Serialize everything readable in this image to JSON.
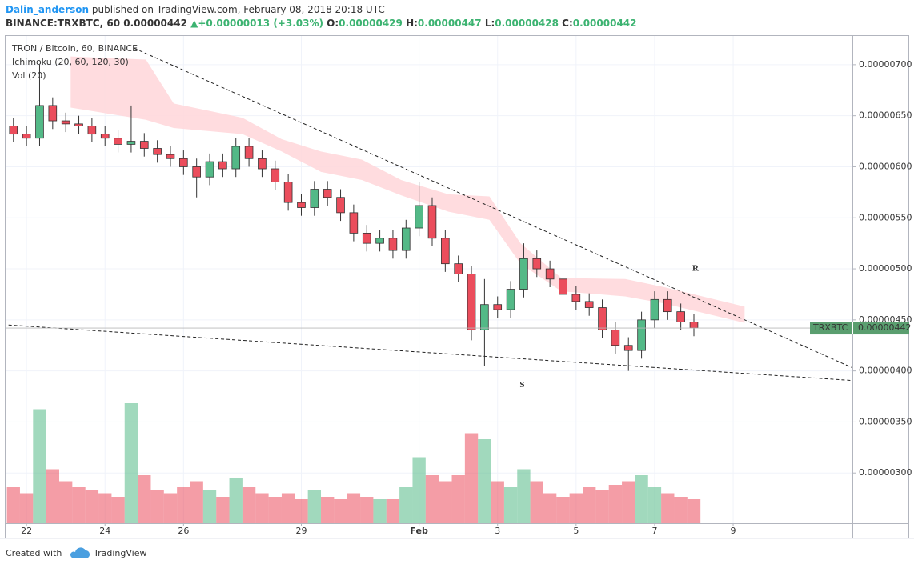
{
  "header": {
    "author": "Dalin_anderson",
    "published": "published on TradingView.com, February 08, 2018 20:18 UTC",
    "symbol": "BINANCE:TRXBTC, 60",
    "last": "0.00000442",
    "arrow": "▲",
    "change": "+0.00000013 (+3.03%)",
    "o_label": "O:",
    "o": "0.00000429",
    "h_label": "H:",
    "h": "0.00000447",
    "l_label": "L:",
    "l": "0.00000428",
    "c_label": "C:",
    "c": "0.00000442"
  },
  "legend": [
    "TRON / Bitcoin, 60, BINANCE",
    "Ichimoku (20, 60, 120, 30)",
    "Vol (20)"
  ],
  "price_label": {
    "symbol": "TRXBTC",
    "value": "0.00000442"
  },
  "footer": {
    "text": "Created with",
    "brand": "TradingView"
  },
  "chart_data": {
    "type": "candlestick",
    "x": [
      "2018-01-21 16:00",
      "2018-01-22 00:00",
      "2018-01-22 08:00",
      "2018-01-22 16:00",
      "2018-01-23 00:00",
      "2018-01-23 08:00",
      "2018-01-23 16:00",
      "2018-01-24 00:00",
      "2018-01-24 08:00",
      "2018-01-24 16:00",
      "2018-01-25 00:00",
      "2018-01-25 08:00",
      "2018-01-25 16:00",
      "2018-01-26 00:00",
      "2018-01-26 08:00",
      "2018-01-26 16:00",
      "2018-01-27 00:00",
      "2018-01-27 08:00",
      "2018-01-27 16:00",
      "2018-01-28 00:00",
      "2018-01-28 08:00",
      "2018-01-28 16:00",
      "2018-01-29 00:00",
      "2018-01-29 08:00",
      "2018-01-29 16:00",
      "2018-01-30 00:00",
      "2018-01-30 08:00",
      "2018-01-30 16:00",
      "2018-01-31 00:00",
      "2018-01-31 08:00",
      "2018-01-31 16:00",
      "2018-02-01 00:00",
      "2018-02-01 08:00",
      "2018-02-01 16:00",
      "2018-02-02 00:00",
      "2018-02-02 08:00",
      "2018-02-02 16:00",
      "2018-02-03 00:00",
      "2018-02-03 08:00",
      "2018-02-03 16:00",
      "2018-02-04 00:00",
      "2018-02-04 08:00",
      "2018-02-04 16:00",
      "2018-02-05 00:00",
      "2018-02-05 08:00",
      "2018-02-05 16:00",
      "2018-02-06 00:00",
      "2018-02-06 08:00",
      "2018-02-06 16:00",
      "2018-02-07 00:00",
      "2018-02-07 08:00",
      "2018-02-07 16:00",
      "2018-02-08 00:00"
    ],
    "open": [
      6.4e-06,
      6.32e-06,
      6.28e-06,
      6.6e-06,
      6.45e-06,
      6.42e-06,
      6.4e-06,
      6.32e-06,
      6.28e-06,
      6.22e-06,
      6.25e-06,
      6.18e-06,
      6.12e-06,
      6.08e-06,
      6e-06,
      5.9e-06,
      6.05e-06,
      5.98e-06,
      6.2e-06,
      6.08e-06,
      5.98e-06,
      5.85e-06,
      5.65e-06,
      5.6e-06,
      5.78e-06,
      5.7e-06,
      5.55e-06,
      5.35e-06,
      5.25e-06,
      5.3e-06,
      5.18e-06,
      5.4e-06,
      5.62e-06,
      5.3e-06,
      5.05e-06,
      4.95e-06,
      4.4e-06,
      4.65e-06,
      4.6e-06,
      4.8e-06,
      5.1e-06,
      5e-06,
      4.9e-06,
      4.75e-06,
      4.68e-06,
      4.62e-06,
      4.4e-06,
      4.25e-06,
      4.2e-06,
      4.5e-06,
      4.7e-06,
      4.58e-06,
      4.48e-06
    ],
    "high": [
      6.48e-06,
      6.4e-06,
      7e-06,
      6.68e-06,
      6.53e-06,
      6.5e-06,
      6.48e-06,
      6.4e-06,
      6.36e-06,
      6.6e-06,
      6.33e-06,
      6.26e-06,
      6.2e-06,
      6.16e-06,
      6.08e-06,
      6.13e-06,
      6.13e-06,
      6.28e-06,
      6.28e-06,
      6.16e-06,
      6.06e-06,
      5.93e-06,
      5.73e-06,
      5.86e-06,
      5.86e-06,
      5.78e-06,
      5.63e-06,
      5.43e-06,
      5.38e-06,
      5.38e-06,
      5.48e-06,
      5.85e-06,
      5.7e-06,
      5.38e-06,
      5.13e-06,
      5.03e-06,
      4.9e-06,
      4.73e-06,
      4.88e-06,
      5.25e-06,
      5.18e-06,
      5.08e-06,
      4.98e-06,
      4.83e-06,
      4.76e-06,
      4.7e-06,
      4.48e-06,
      4.33e-06,
      4.58e-06,
      4.78e-06,
      4.78e-06,
      4.66e-06,
      4.56e-06
    ],
    "low": [
      6.24e-06,
      6.2e-06,
      6.2e-06,
      6.37e-06,
      6.34e-06,
      6.32e-06,
      6.24e-06,
      6.2e-06,
      6.14e-06,
      6.14e-06,
      6.1e-06,
      6.04e-06,
      6e-06,
      5.92e-06,
      5.7e-06,
      5.82e-06,
      5.9e-06,
      5.9e-06,
      6e-06,
      5.9e-06,
      5.77e-06,
      5.57e-06,
      5.52e-06,
      5.52e-06,
      5.62e-06,
      5.47e-06,
      5.27e-06,
      5.17e-06,
      5.17e-06,
      5.1e-06,
      5.1e-06,
      5.32e-06,
      5.22e-06,
      4.97e-06,
      4.87e-06,
      4.3e-06,
      4.05e-06,
      4.52e-06,
      4.52e-06,
      4.72e-06,
      4.92e-06,
      4.82e-06,
      4.67e-06,
      4.6e-06,
      4.54e-06,
      4.32e-06,
      4.17e-06,
      4e-06,
      4.12e-06,
      4.42e-06,
      4.5e-06,
      4.4e-06,
      4.34e-06
    ],
    "close": [
      6.32e-06,
      6.28e-06,
      6.6e-06,
      6.45e-06,
      6.42e-06,
      6.4e-06,
      6.32e-06,
      6.28e-06,
      6.22e-06,
      6.25e-06,
      6.18e-06,
      6.12e-06,
      6.08e-06,
      6e-06,
      5.9e-06,
      6.05e-06,
      5.98e-06,
      6.2e-06,
      6.08e-06,
      5.98e-06,
      5.85e-06,
      5.65e-06,
      5.6e-06,
      5.78e-06,
      5.7e-06,
      5.55e-06,
      5.35e-06,
      5.25e-06,
      5.3e-06,
      5.18e-06,
      5.4e-06,
      5.62e-06,
      5.3e-06,
      5.05e-06,
      4.95e-06,
      4.4e-06,
      4.65e-06,
      4.6e-06,
      4.8e-06,
      5.1e-06,
      5e-06,
      4.9e-06,
      4.75e-06,
      4.68e-06,
      4.62e-06,
      4.4e-06,
      4.25e-06,
      4.2e-06,
      4.5e-06,
      4.7e-06,
      4.58e-06,
      4.48e-06,
      4.42e-06
    ],
    "volume": [
      30,
      25,
      95,
      45,
      35,
      30,
      28,
      25,
      22,
      100,
      40,
      28,
      25,
      30,
      35,
      28,
      22,
      38,
      30,
      25,
      22,
      25,
      20,
      28,
      22,
      20,
      25,
      22,
      20,
      20,
      30,
      55,
      40,
      35,
      40,
      75,
      70,
      35,
      30,
      45,
      35,
      25,
      22,
      25,
      30,
      28,
      32,
      35,
      40,
      30,
      25,
      22,
      20
    ],
    "up_color": "#53b987",
    "down_color": "#eb4d5c",
    "cloud": {
      "color": "#ffd6d9",
      "x": [
        "2018-01-23 03:00",
        "2018-01-25 01:00",
        "2018-01-25 18:00",
        "2018-01-27 12:00",
        "2018-01-28 12:00",
        "2018-01-29 12:00",
        "2018-01-30 13:00",
        "2018-01-31 13:00",
        "2018-02-01 18:00",
        "2018-02-02 19:00",
        "2018-02-03 14:00",
        "2018-02-04 15:00",
        "2018-02-06 06:00",
        "2018-02-07 06:00",
        "2018-02-09 07:00"
      ],
      "upper": [
        7.08e-06,
        7.05e-06,
        6.62e-06,
        6.48e-06,
        6.27e-06,
        6.15e-06,
        6.07e-06,
        5.87e-06,
        5.73e-06,
        5.71e-06,
        5.25e-06,
        4.91e-06,
        4.9e-06,
        4.82e-06,
        4.63e-06
      ],
      "lower": [
        6.58e-06,
        6.46e-06,
        6.38e-06,
        6.32e-06,
        6.15e-06,
        5.95e-06,
        5.87e-06,
        5.72e-06,
        5.56e-06,
        5.48e-06,
        5.05e-06,
        4.78e-06,
        4.73e-06,
        4.66e-06,
        4.47e-06
      ]
    },
    "trendlines": [
      {
        "x": [
          "2018-01-24 18:00",
          "2018-02-12 01:00"
        ],
        "y": [
          7.16e-06,
          4.03e-06
        ]
      },
      {
        "x": [
          "2018-01-21 13:00",
          "2018-02-12 01:00"
        ],
        "y": [
          4.45e-06,
          3.906e-06
        ]
      }
    ],
    "annotations": [
      {
        "text": "R",
        "x": "2018-02-08 01:00",
        "y": 5e-06
      },
      {
        "text": "S",
        "x": "2018-02-03 15:00",
        "y": 3.86e-06
      }
    ],
    "xlim": [
      "2018-01-21 11:13",
      "2018-02-12 00:53"
    ],
    "xticks": [
      {
        "value": "2018-01-22 00:00",
        "label": "22"
      },
      {
        "value": "2018-01-24 00:00",
        "label": "24"
      },
      {
        "value": "2018-01-26 00:00",
        "label": "26"
      },
      {
        "value": "2018-01-29 00:00",
        "label": "29"
      },
      {
        "value": "2018-02-01 00:00",
        "label": "Feb"
      },
      {
        "value": "2018-02-03 00:00",
        "label": "3"
      },
      {
        "value": "2018-02-05 00:00",
        "label": "5"
      },
      {
        "value": "2018-02-07 00:00",
        "label": "7"
      },
      {
        "value": "2018-02-09 00:00",
        "label": "9"
      }
    ],
    "ylim": [
      2.508e-06,
      7.289e-06
    ],
    "yticks": [
      {
        "value": 3e-06,
        "label": "0.00000300"
      },
      {
        "value": 3.5e-06,
        "label": "0.00000350"
      },
      {
        "value": 4e-06,
        "label": "0.00000400"
      },
      {
        "value": 4.5e-06,
        "label": "0.00000450"
      },
      {
        "value": 5e-06,
        "label": "0.00000500"
      },
      {
        "value": 5.5e-06,
        "label": "0.00000550"
      },
      {
        "value": 6e-06,
        "label": "0.00000600"
      },
      {
        "value": 6.5e-06,
        "label": "0.00000650"
      },
      {
        "value": 7e-06,
        "label": "0.00000700"
      }
    ],
    "grid": true
  }
}
